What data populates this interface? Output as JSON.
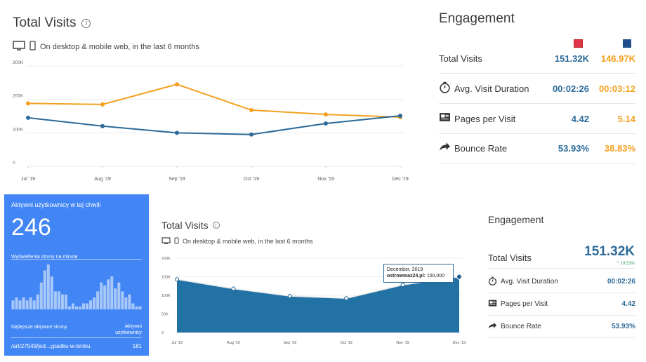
{
  "top_chart": {
    "title": "Total Visits",
    "subtitle": "On desktop & mobile web, in the last 6 months"
  },
  "engagement_top": {
    "title": "Engagement",
    "rows": [
      {
        "label": "Total Visits",
        "icon": "",
        "a": "151.32K",
        "b": "146.97K"
      },
      {
        "label": "Avg. Visit Duration",
        "icon": "stopwatch-icon",
        "a": "00:02:26",
        "b": "00:03:12"
      },
      {
        "label": "Pages per Visit",
        "icon": "pages-icon",
        "a": "4.42",
        "b": "5.14"
      },
      {
        "label": "Bounce Rate",
        "icon": "bounce-arrow-icon",
        "a": "53.93%",
        "b": "38.83%"
      }
    ]
  },
  "widget": {
    "title": "Aktywni użytkownicy w tej chwili",
    "count": "246",
    "pageviews_label": "Wyświetlenia strony na minutę",
    "top_pages_label": "Najlepsze aktywne strony",
    "active_users_label": "Aktywni użytkownicy",
    "top_page_path": "/art/27549/jed...ypadku-w-broku",
    "top_page_count": "181",
    "bar_values": [
      3,
      4,
      3,
      4,
      3,
      4,
      3,
      5,
      9,
      13,
      15,
      11,
      6,
      6,
      5,
      5,
      1,
      2,
      1,
      1,
      2,
      2,
      3,
      4,
      6,
      9,
      8,
      10,
      11,
      7,
      9,
      6,
      4,
      5,
      2,
      1,
      1
    ]
  },
  "bottom_chart": {
    "title": "Total Visits",
    "subtitle": "On desktop & mobile web, in the last 6 months",
    "tooltip_date": "December, 2019",
    "tooltip_site": "ostrowmaz24.pl",
    "tooltip_value": "150,000"
  },
  "engagement_bottom": {
    "title": "Engagement",
    "total_label": "Total Visits",
    "total_value": "151.32K",
    "total_change": "19.53%",
    "rows": [
      {
        "label": "Avg. Visit Duration",
        "icon": "stopwatch-icon",
        "value": "00:02:26"
      },
      {
        "label": "Pages per Visit",
        "icon": "pages-icon",
        "value": "4.42"
      },
      {
        "label": "Bounce Rate",
        "icon": "bounce-arrow-icon",
        "value": "53.93%"
      }
    ]
  },
  "colors": {
    "blue": "#2b6a9a",
    "orange": "#f5a01f",
    "red_site": "#e0364a",
    "widget_bg": "#4285f4",
    "area_fill": "#2272a6"
  },
  "chart_data": [
    {
      "type": "line",
      "title": "Total Visits",
      "categories": [
        "Jul '19",
        "Aug '19",
        "Sep '19",
        "Oct '19",
        "Nov '19",
        "Dec '19"
      ],
      "yticks": [
        "0",
        "100K",
        "200K",
        "300K"
      ],
      "ylim": [
        0,
        300000
      ],
      "series": [
        {
          "color": "#f5a01f",
          "values": [
            188000,
            185000,
            245000,
            168000,
            155000,
            147000
          ]
        },
        {
          "color": "#2b6a9a",
          "values": [
            145000,
            120000,
            100000,
            95000,
            128000,
            151000
          ]
        }
      ]
    },
    {
      "type": "area",
      "title": "Total Visits",
      "categories": [
        "Jul '19",
        "Aug '19",
        "Sep '19",
        "Oct '19",
        "Nov '19",
        "Dec '19"
      ],
      "yticks": [
        "0",
        "50K",
        "100K",
        "150K",
        "200K"
      ],
      "ylim": [
        0,
        200000
      ],
      "series": [
        {
          "name": "ostrowmaz24.pl",
          "values": [
            143000,
            118000,
            98000,
            92000,
            128000,
            150000
          ]
        }
      ]
    }
  ]
}
